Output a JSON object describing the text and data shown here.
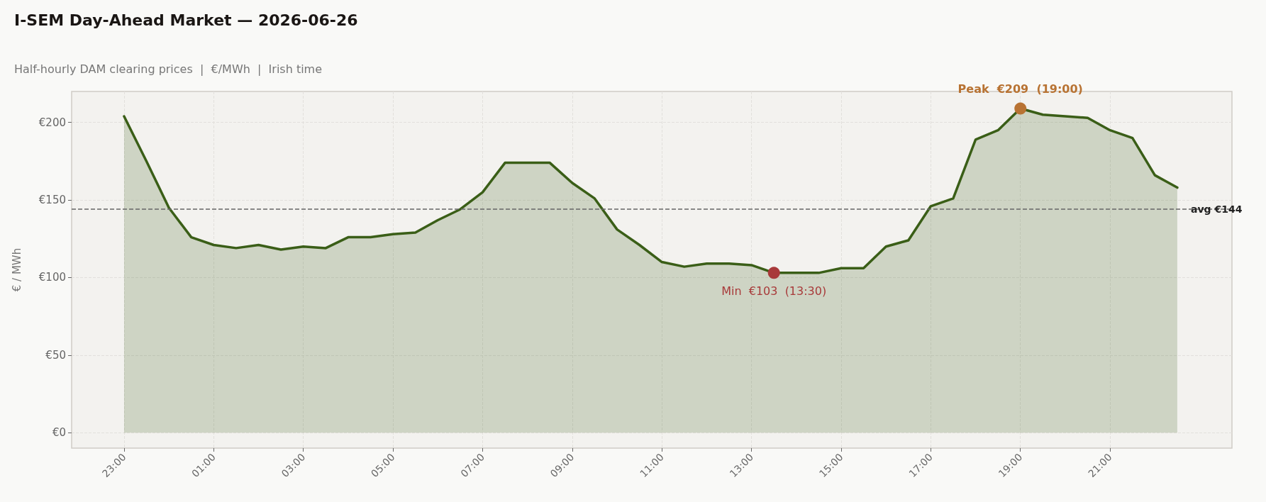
{
  "chart_data": {
    "type": "area",
    "title": "I-SEM Day-Ahead Market — 2026-06-26",
    "subtitle": "Half-hourly DAM clearing prices  |  €/MWh  |  Irish time",
    "ylabel": "€ / MWh",
    "categories": [
      "23:00",
      null,
      null,
      null,
      "01:00",
      null,
      null,
      null,
      "03:00",
      null,
      null,
      null,
      "05:00",
      null,
      null,
      null,
      "07:00",
      null,
      null,
      null,
      "09:00",
      null,
      null,
      null,
      "11:00",
      null,
      null,
      null,
      "13:00",
      null,
      null,
      null,
      "15:00",
      null,
      null,
      null,
      "17:00",
      null,
      null,
      null,
      "19:00",
      null,
      null,
      null,
      "21:00",
      null,
      null,
      null
    ],
    "series": [
      {
        "color": "#3a5e17",
        "values": [
          204,
          175,
          145,
          126,
          121,
          119,
          121,
          118,
          120,
          119,
          126,
          126,
          128,
          129,
          137,
          144,
          155,
          174,
          174,
          174,
          161,
          151,
          131,
          121,
          110,
          107,
          109,
          109,
          108,
          103,
          103,
          103,
          106,
          106,
          120,
          124,
          146,
          151,
          189,
          195,
          209,
          205,
          204,
          203,
          195,
          190,
          166,
          158
        ]
      },
      {
        "type": "scatter",
        "marker": "circle",
        "color": "#b87333",
        "values": [
          null,
          null,
          null,
          null,
          null,
          null,
          null,
          null,
          null,
          null,
          null,
          null,
          null,
          null,
          null,
          null,
          null,
          null,
          null,
          null,
          null,
          null,
          null,
          null,
          null,
          null,
          null,
          null,
          null,
          null,
          null,
          null,
          null,
          null,
          null,
          null,
          null,
          null,
          null,
          null,
          209,
          null,
          null,
          null,
          null,
          null,
          null,
          null
        ]
      },
      {
        "type": "scatter",
        "marker": "circle",
        "color": "#a83a3a",
        "values": [
          null,
          null,
          null,
          null,
          null,
          null,
          null,
          null,
          null,
          null,
          null,
          null,
          null,
          null,
          null,
          null,
          null,
          null,
          null,
          null,
          null,
          null,
          null,
          null,
          null,
          null,
          null,
          null,
          null,
          103,
          null,
          null,
          null,
          null,
          null,
          null,
          null,
          null,
          null,
          null,
          null,
          null,
          null,
          null,
          null,
          null,
          null,
          null
        ]
      }
    ],
    "annotations": [
      {
        "text": "Peak  €209  (19:00)",
        "y": 209
      },
      {
        "text": "Min  €103  (13:30)",
        "y": 103
      }
    ],
    "ref_lines": [
      {
        "axis": "y",
        "value": 144,
        "label": "avg €144",
        "color": "#666666",
        "line_style": "dashed"
      }
    ],
    "ylim": [
      -10,
      220
    ],
    "yticks": [
      {
        "value": 0,
        "label": "€0"
      },
      {
        "value": 50,
        "label": "€50"
      },
      {
        "value": 100,
        "label": "€100"
      },
      {
        "value": 150,
        "label": "€150"
      },
      {
        "value": 200,
        "label": "€200"
      }
    ],
    "grid": true,
    "marker": "none",
    "line_style": "solid"
  }
}
